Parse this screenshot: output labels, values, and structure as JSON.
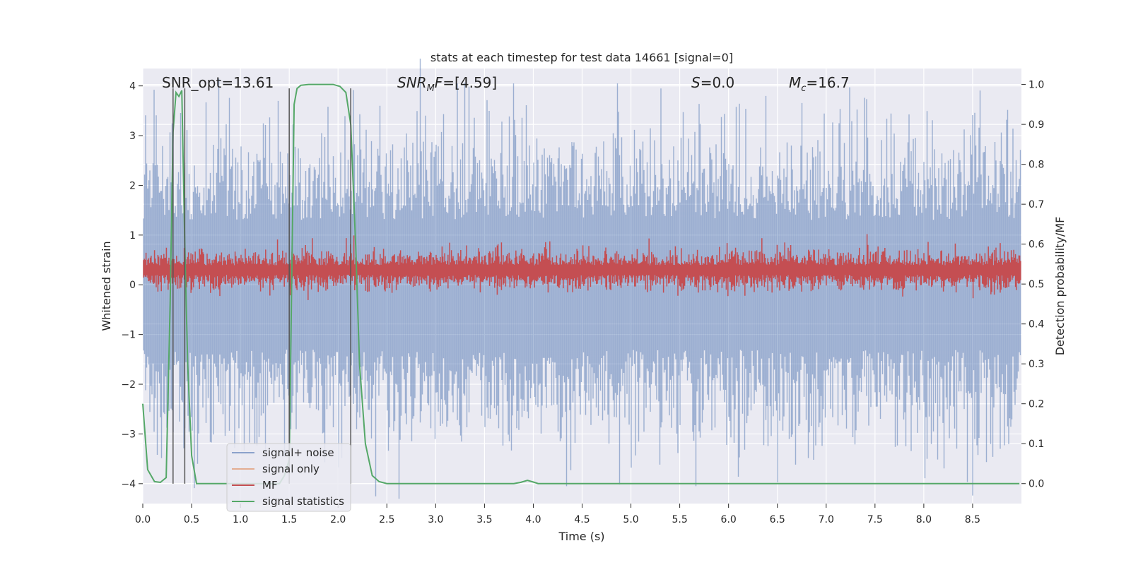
{
  "chart_data": {
    "type": "line",
    "title": "stats at each timestep for test data 14661 [signal=0]",
    "xlabel": "Time (s)",
    "ylabel_left": "Whitened strain",
    "ylabel_right": "Detection probability/MF",
    "xlim": [
      0.0,
      9.0
    ],
    "ylim_left": [
      -4.4,
      4.35
    ],
    "ylim_right": [
      -0.05,
      1.04
    ],
    "xticks": [
      0.0,
      0.5,
      1.0,
      1.5,
      2.0,
      2.5,
      3.0,
      3.5,
      4.0,
      4.5,
      5.0,
      5.5,
      6.0,
      6.5,
      7.0,
      7.5,
      8.0,
      8.5
    ],
    "xtick_labels": [
      "0.0",
      "0.5",
      "1.0",
      "1.5",
      "2.0",
      "2.5",
      "3.0",
      "3.5",
      "4.0",
      "4.5",
      "5.0",
      "5.5",
      "6.0",
      "6.5",
      "7.0",
      "7.5",
      "8.0",
      "8.5"
    ],
    "yticks_left": [
      4,
      3,
      2,
      1,
      0,
      -1,
      -2,
      -3,
      -4
    ],
    "ytick_labels_left": [
      "4",
      "3",
      "2",
      "1",
      "0",
      "−1",
      "−2",
      "−3",
      "−4"
    ],
    "yticks_right": [
      1.0,
      0.9,
      0.8,
      0.7,
      0.6,
      0.5,
      0.4,
      0.3,
      0.2,
      0.1,
      0.0
    ],
    "ytick_labels_right": [
      "1.0",
      "0.9",
      "0.8",
      "0.7",
      "0.6",
      "0.5",
      "0.4",
      "0.3",
      "0.2",
      "0.1",
      "0.0"
    ],
    "grid": true,
    "legend_position": "lower-left",
    "annotations": [
      {
        "label": "SNR_opt=13.61",
        "x": 0.19,
        "y": 4.1
      },
      {
        "label": "SNR_MF=[4.59]",
        "x": 2.6,
        "y": 4.1
      },
      {
        "label": "S=0.0",
        "x": 5.6,
        "y": 4.1
      },
      {
        "label": "M_c=16.7",
        "x": 6.6,
        "y": 4.1
      }
    ],
    "vlines": {
      "x": [
        0.31,
        0.43,
        1.5,
        2.13
      ],
      "y_range": [
        -4.0,
        3.95
      ]
    },
    "series": [
      {
        "name": "signal+ noise",
        "color": "#4c72b0",
        "axis": "left",
        "style": "noise band",
        "envelope_upper": 2.9,
        "envelope_lower": -2.9,
        "peak_max": 4.05,
        "peak_min": -4.05
      },
      {
        "name": "signal only",
        "color": "#dd8452",
        "axis": "left",
        "values": []
      },
      {
        "name": "MF",
        "color": "#c44e52",
        "axis": "right",
        "style": "noise band",
        "mean": 0.535,
        "spread": 0.04,
        "peak_max": 0.625
      },
      {
        "name": "signal statistics",
        "color": "#55a868",
        "axis": "right",
        "x": [
          0.0,
          0.05,
          0.12,
          0.18,
          0.24,
          0.28,
          0.31,
          0.34,
          0.37,
          0.4,
          0.43,
          0.46,
          0.5,
          0.55,
          1.4,
          1.45,
          1.5,
          1.55,
          1.58,
          1.62,
          1.7,
          1.8,
          1.95,
          2.02,
          2.08,
          2.13,
          2.18,
          2.22,
          2.28,
          2.35,
          2.42,
          2.5,
          3.8,
          3.87,
          3.94,
          4.0,
          4.05,
          8.98
        ],
        "values": [
          0.2,
          0.035,
          0.005,
          0.003,
          0.015,
          0.45,
          0.88,
          0.98,
          0.97,
          0.985,
          0.6,
          0.3,
          0.07,
          0.0,
          0.0,
          0.02,
          0.06,
          0.95,
          0.99,
          0.998,
          1.0,
          1.0,
          1.0,
          0.995,
          0.98,
          0.9,
          0.6,
          0.3,
          0.1,
          0.02,
          0.005,
          0.0,
          0.0,
          0.003,
          0.008,
          0.004,
          0.0,
          0.0
        ]
      }
    ]
  }
}
